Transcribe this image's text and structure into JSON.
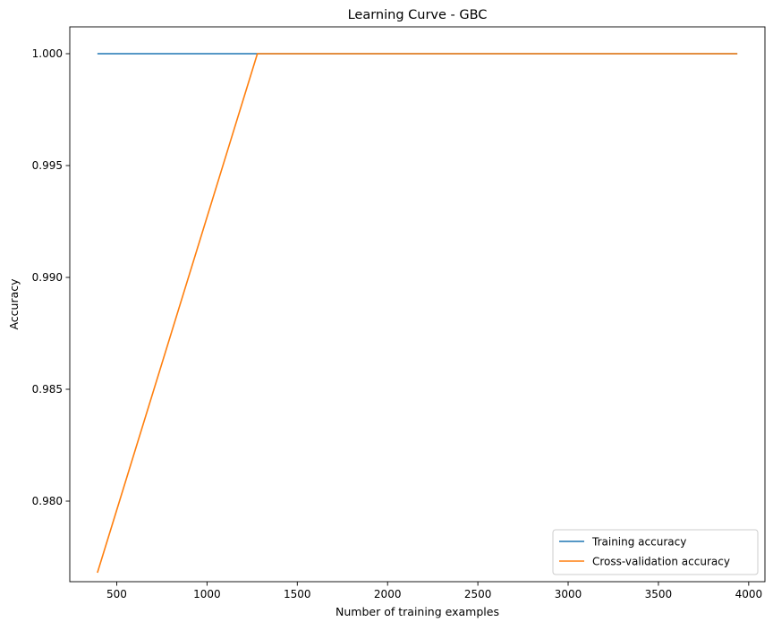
{
  "chart_data": {
    "type": "line",
    "title": "Learning Curve - GBC",
    "xlabel": "Number of training examples",
    "ylabel": "Accuracy",
    "xlim": [
      240,
      4090
    ],
    "ylim": [
      0.9764,
      1.0012
    ],
    "xticks": [
      500,
      1000,
      1500,
      2000,
      2500,
      3000,
      3500,
      4000
    ],
    "xtick_labels": [
      "500",
      "1000",
      "1500",
      "2000",
      "2500",
      "3000",
      "3500",
      "4000"
    ],
    "yticks": [
      0.98,
      0.985,
      0.99,
      0.995,
      1.0
    ],
    "ytick_labels": [
      "0.980",
      "0.985",
      "0.990",
      "0.995",
      "1.000"
    ],
    "grid": false,
    "legend_position": "lower-right",
    "series": [
      {
        "name": "Training accuracy",
        "color": "#1f77b4",
        "x": [
          393,
          1279,
          2165,
          3051,
          3937
        ],
        "y": [
          1.0,
          1.0,
          1.0,
          1.0,
          1.0
        ]
      },
      {
        "name": "Cross-validation accuracy",
        "color": "#ff7f0e",
        "x": [
          393,
          1279,
          2165,
          3051,
          3937
        ],
        "y": [
          0.9768,
          1.0,
          1.0,
          1.0,
          1.0
        ]
      }
    ]
  }
}
